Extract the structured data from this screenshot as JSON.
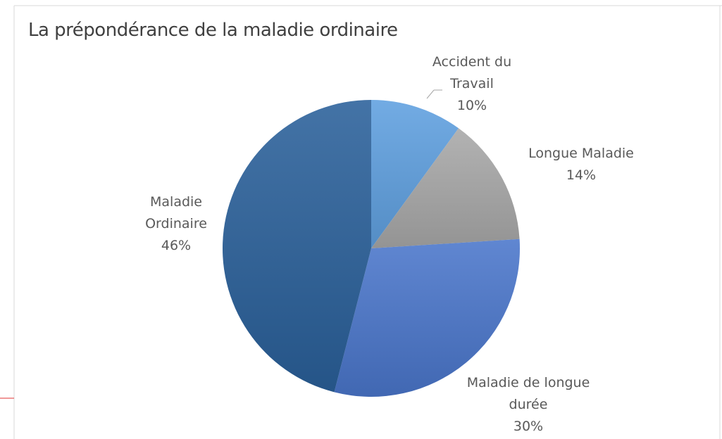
{
  "chart_data": {
    "type": "pie",
    "title": "La prépondérance de la maladie ordinaire",
    "categories": [
      "Accident du Travail",
      "Longue Maladie",
      "Maladie de longue durée",
      "Maladie Ordinaire"
    ],
    "values": [
      10,
      14,
      30,
      46
    ],
    "value_labels": [
      "10%",
      "14%",
      "30%",
      "46%"
    ],
    "colors": [
      "#5fa0e0",
      "#a8a8a8",
      "#4a76cb",
      "#2a609a"
    ]
  }
}
